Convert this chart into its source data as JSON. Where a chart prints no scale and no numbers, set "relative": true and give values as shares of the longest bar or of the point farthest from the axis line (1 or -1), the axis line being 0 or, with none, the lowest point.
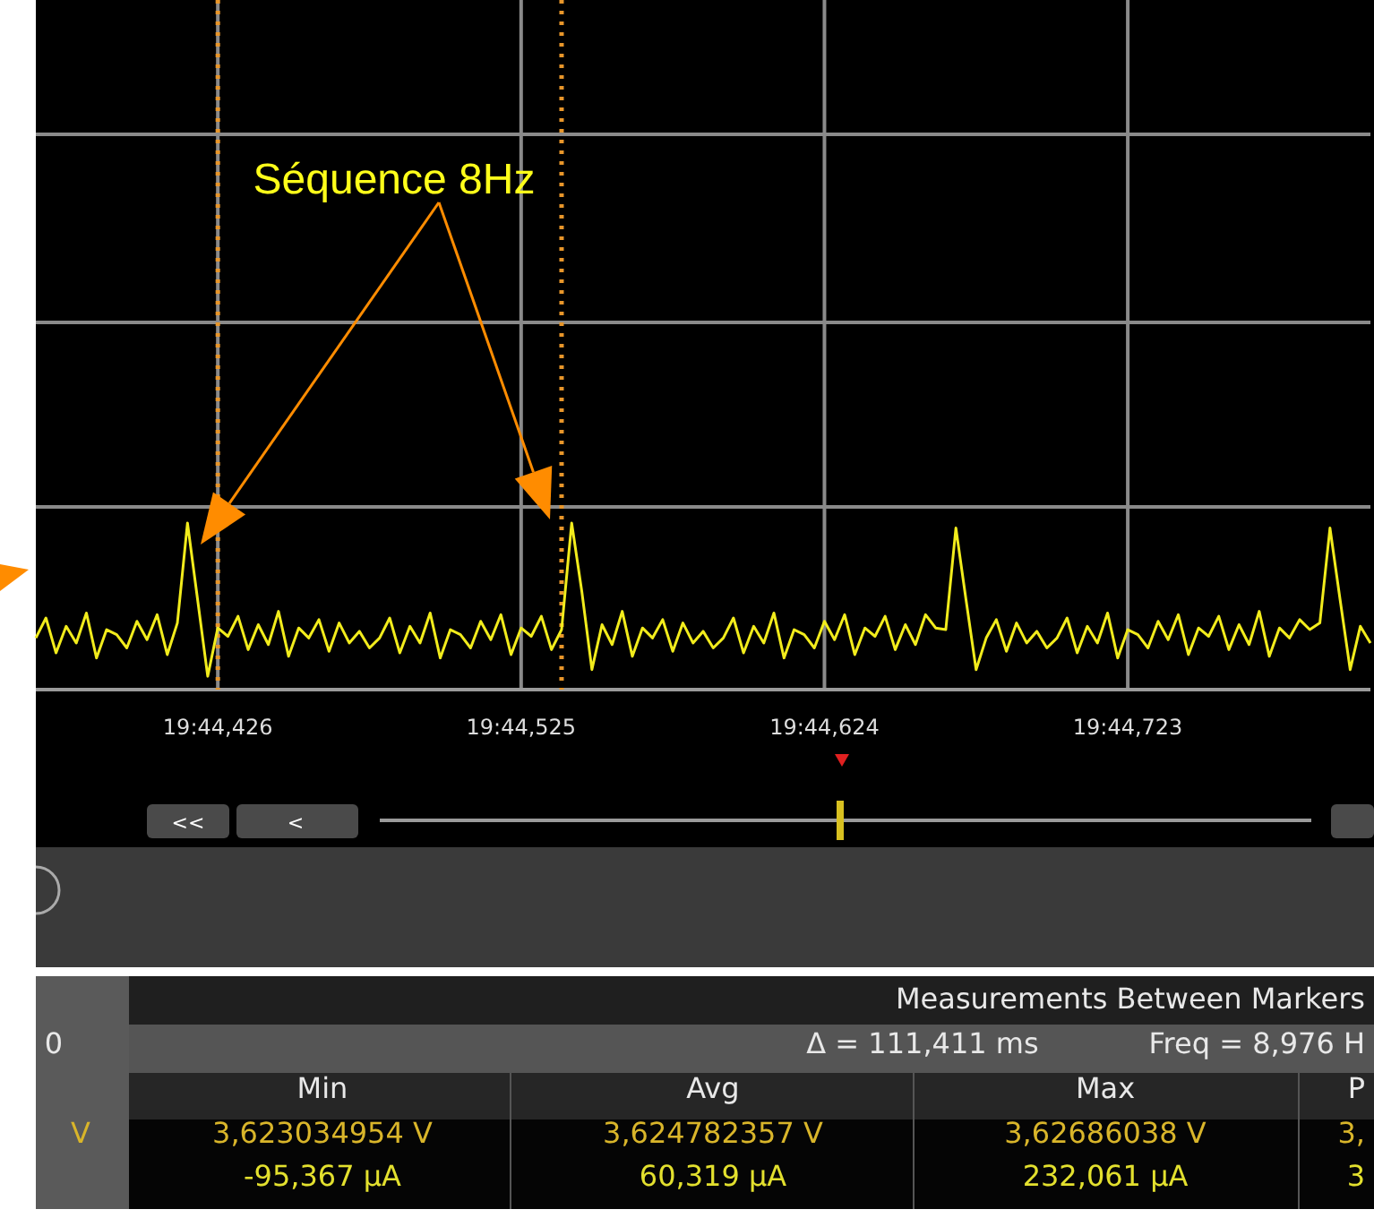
{
  "chart_data": {
    "type": "line",
    "relative": true,
    "grid": true,
    "categories": [
      null,
      null,
      null,
      null,
      null,
      null,
      null,
      null,
      null,
      null,
      null,
      null,
      null,
      null,
      null,
      null,
      null,
      null,
      "19:44,426",
      null,
      null,
      null,
      null,
      null,
      null,
      null,
      null,
      null,
      null,
      null,
      null,
      null,
      null,
      null,
      null,
      null,
      null,
      null,
      null,
      null,
      null,
      null,
      null,
      null,
      null,
      null,
      null,
      null,
      "19:44,525",
      null,
      null,
      null,
      null,
      null,
      null,
      null,
      null,
      null,
      null,
      null,
      null,
      null,
      null,
      null,
      null,
      null,
      null,
      null,
      null,
      null,
      null,
      null,
      null,
      null,
      null,
      null,
      null,
      null,
      "19:44,624",
      null,
      null,
      null,
      null,
      null,
      null,
      null,
      null,
      null,
      null,
      null,
      null,
      null,
      null,
      null,
      null,
      null,
      null,
      null,
      null,
      null,
      null,
      null,
      null,
      null,
      null,
      null,
      null,
      null,
      "19:44,723",
      null,
      null,
      null,
      null,
      null,
      null,
      null,
      null,
      null,
      null,
      null,
      null,
      null,
      null,
      null,
      null,
      null,
      null,
      null,
      null,
      null,
      null,
      null,
      null
    ],
    "series": [
      {
        "color": "#f2ec1c",
        "values": [
          0.31,
          0.43,
          0.22,
          0.38,
          0.28,
          0.46,
          0.19,
          0.36,
          0.33,
          0.25,
          0.41,
          0.3,
          0.45,
          0.21,
          0.4,
          1,
          0.54,
          0.08,
          0.37,
          0.32,
          0.44,
          0.24,
          0.39,
          0.27,
          0.47,
          0.2,
          0.37,
          0.31,
          0.42,
          0.23,
          0.4,
          0.28,
          0.35,
          0.25,
          0.31,
          0.43,
          0.22,
          0.38,
          0.28,
          0.46,
          0.19,
          0.36,
          0.33,
          0.25,
          0.41,
          0.3,
          0.45,
          0.21,
          0.37,
          0.32,
          0.44,
          0.24,
          0.36,
          1,
          0.59,
          0.12,
          0.39,
          0.27,
          0.47,
          0.2,
          0.37,
          0.31,
          0.42,
          0.23,
          0.4,
          0.28,
          0.35,
          0.25,
          0.31,
          0.43,
          0.22,
          0.38,
          0.28,
          0.46,
          0.19,
          0.36,
          0.33,
          0.25,
          0.41,
          0.3,
          0.45,
          0.21,
          0.37,
          0.32,
          0.44,
          0.24,
          0.39,
          0.27,
          0.45,
          0.37,
          0.36,
          0.97,
          0.54,
          0.12,
          0.31,
          0.42,
          0.23,
          0.4,
          0.28,
          0.35,
          0.25,
          0.31,
          0.43,
          0.22,
          0.38,
          0.28,
          0.46,
          0.19,
          0.36,
          0.33,
          0.25,
          0.41,
          0.3,
          0.45,
          0.21,
          0.37,
          0.32,
          0.44,
          0.24,
          0.39,
          0.27,
          0.47,
          0.2,
          0.37,
          0.31,
          0.42,
          0.36,
          0.4,
          0.97,
          0.54,
          0.12,
          0.38,
          0.28
        ]
      }
    ],
    "annotations": [
      "Séquence 8Hz",
      "<<",
      "<",
      "Measurements Between Markers",
      "Δ = 111,411 ms",
      "Freq = 8,976 H",
      "Min",
      "Avg",
      "Max",
      "P",
      "3,623034954 V",
      "3,624782357 V",
      "3,62686038 V",
      "3,",
      "-95,367 µA",
      "60,319 µA",
      "232,061 µA",
      "3",
      "0",
      "V"
    ]
  }
}
